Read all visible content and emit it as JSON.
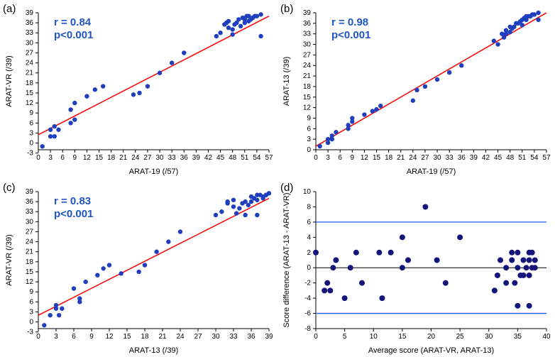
{
  "figure": {
    "background_color": "#ffffff",
    "panel_label_font_size": 15,
    "panel_label_color": "#000000"
  },
  "panels": {
    "a": {
      "label": "(a)",
      "type": "scatter",
      "xlabel": "ARAT-19 (/57)",
      "ylabel": "ARAT-VR (/39)",
      "xlim": [
        0,
        57
      ],
      "ylim": [
        -2,
        39
      ],
      "xticks": [
        0,
        3,
        6,
        9,
        12,
        15,
        18,
        21,
        24,
        27,
        30,
        33,
        36,
        39,
        42,
        45,
        48,
        51,
        54,
        57
      ],
      "yticks": [
        -3,
        0,
        3,
        6,
        9,
        12,
        15,
        18,
        21,
        24,
        27,
        30,
        33,
        36,
        39
      ],
      "stats_label": {
        "r": "r = 0.84",
        "p": "p<0.001"
      },
      "stats_color": "#1f55c3",
      "stats_fontsize": 15,
      "stats_bold": true,
      "axis_color": "#000000",
      "axis_fontsize": 10,
      "marker_color": "#1f3fbf",
      "marker_size": 3.2,
      "fit_line_color": "#ff0000",
      "fit_line_width": 1.5,
      "fit_line": {
        "x1": 0,
        "y1": 2.5,
        "x2": 57,
        "y2": 38
      },
      "points": [
        [
          1,
          -1
        ],
        [
          3,
          2
        ],
        [
          3,
          4
        ],
        [
          4,
          5
        ],
        [
          4,
          2
        ],
        [
          5,
          4
        ],
        [
          8,
          10
        ],
        [
          8,
          6
        ],
        [
          9,
          12
        ],
        [
          9,
          7
        ],
        [
          12,
          14
        ],
        [
          14,
          16
        ],
        [
          16,
          17
        ],
        [
          23.5,
          14.5
        ],
        [
          25,
          15
        ],
        [
          27,
          17
        ],
        [
          30,
          21
        ],
        [
          33,
          24
        ],
        [
          36,
          27
        ],
        [
          44,
          32
        ],
        [
          45,
          33
        ],
        [
          46,
          35.5
        ],
        [
          46.5,
          36
        ],
        [
          47,
          34.5
        ],
        [
          47,
          36.5
        ],
        [
          48,
          32.5
        ],
        [
          48,
          34
        ],
        [
          48.5,
          35.5
        ],
        [
          49,
          36
        ],
        [
          49.5,
          37
        ],
        [
          50,
          35
        ],
        [
          50.5,
          37.5
        ],
        [
          51,
          36
        ],
        [
          51,
          37
        ],
        [
          51.5,
          38
        ],
        [
          52,
          36.5
        ],
        [
          52,
          38
        ],
        [
          52.5,
          37
        ],
        [
          53,
          37.5
        ],
        [
          53.5,
          38
        ],
        [
          54,
          38
        ],
        [
          55,
          38.5
        ],
        [
          55,
          32
        ]
      ]
    },
    "b": {
      "label": "(b)",
      "type": "scatter",
      "xlabel": "ARAT-19 (/57)",
      "ylabel": "ARAT-13 (/39)",
      "xlim": [
        0,
        57
      ],
      "ylim": [
        0,
        39
      ],
      "xticks": [
        0,
        3,
        6,
        9,
        12,
        15,
        18,
        21,
        24,
        27,
        30,
        33,
        36,
        39,
        42,
        45,
        48,
        51,
        54,
        57
      ],
      "yticks": [
        0,
        3,
        6,
        9,
        12,
        15,
        18,
        21,
        24,
        27,
        30,
        33,
        36,
        39
      ],
      "stats_label": {
        "r": "r = 0.98",
        "p": "p<0.001"
      },
      "stats_color": "#1f55c3",
      "stats_fontsize": 15,
      "stats_bold": true,
      "axis_color": "#000000",
      "axis_fontsize": 10,
      "marker_color": "#1f3fbf",
      "marker_size": 3.2,
      "fit_line_color": "#ff0000",
      "fit_line_width": 1.5,
      "fit_line": {
        "x1": 0,
        "y1": 1,
        "x2": 57,
        "y2": 39
      },
      "points": [
        [
          1,
          1
        ],
        [
          3,
          2
        ],
        [
          3,
          3
        ],
        [
          4,
          3
        ],
        [
          4,
          4
        ],
        [
          5,
          5
        ],
        [
          8,
          6
        ],
        [
          8,
          7
        ],
        [
          9,
          8
        ],
        [
          9,
          9
        ],
        [
          12,
          10
        ],
        [
          14,
          11
        ],
        [
          15,
          11.5
        ],
        [
          16,
          12.5
        ],
        [
          24,
          14
        ],
        [
          25,
          17
        ],
        [
          27,
          18
        ],
        [
          30,
          20
        ],
        [
          33,
          22
        ],
        [
          36,
          24
        ],
        [
          44,
          31
        ],
        [
          45,
          30
        ],
        [
          46,
          33
        ],
        [
          46.5,
          32
        ],
        [
          47,
          34
        ],
        [
          47,
          33
        ],
        [
          48,
          33.5
        ],
        [
          48,
          35
        ],
        [
          48.5,
          34.5
        ],
        [
          49,
          35
        ],
        [
          49.5,
          36
        ],
        [
          50,
          36
        ],
        [
          50.5,
          36.5
        ],
        [
          51,
          35.5
        ],
        [
          51,
          37
        ],
        [
          51.5,
          37.5
        ],
        [
          52,
          37
        ],
        [
          52,
          38
        ],
        [
          52.5,
          38
        ],
        [
          53,
          38
        ],
        [
          53.5,
          38.5
        ],
        [
          54,
          38.5
        ],
        [
          55,
          39
        ],
        [
          55,
          37
        ]
      ]
    },
    "c": {
      "label": "(c)",
      "type": "scatter",
      "xlabel": "ARAT-13 (/39)",
      "ylabel": "ARAT-VR (/39)",
      "xlim": [
        0,
        39
      ],
      "ylim": [
        -2,
        39
      ],
      "xticks": [
        0,
        3,
        6,
        9,
        12,
        15,
        18,
        21,
        24,
        27,
        30,
        33,
        36,
        39
      ],
      "yticks": [
        -3,
        0,
        3,
        6,
        9,
        12,
        15,
        18,
        21,
        24,
        27,
        30,
        33,
        36,
        39
      ],
      "stats_label": {
        "r": "r = 0.83",
        "p": "p<0.001"
      },
      "stats_color": "#1f55c3",
      "stats_fontsize": 15,
      "stats_bold": true,
      "axis_color": "#000000",
      "axis_fontsize": 10,
      "marker_color": "#1f3fbf",
      "marker_size": 3.2,
      "fit_line_color": "#ff0000",
      "fit_line_width": 1.5,
      "fit_line": {
        "x1": 0,
        "y1": 2,
        "x2": 39,
        "y2": 37
      },
      "points": [
        [
          1,
          -1
        ],
        [
          2,
          2
        ],
        [
          3,
          4
        ],
        [
          3,
          5
        ],
        [
          3.5,
          2
        ],
        [
          4,
          4
        ],
        [
          6,
          10
        ],
        [
          7,
          7
        ],
        [
          7,
          6
        ],
        [
          8,
          12
        ],
        [
          10,
          14
        ],
        [
          11,
          16
        ],
        [
          12,
          17
        ],
        [
          14,
          14.5
        ],
        [
          17,
          15
        ],
        [
          18,
          17
        ],
        [
          20,
          21
        ],
        [
          22,
          24
        ],
        [
          24,
          27
        ],
        [
          30,
          32
        ],
        [
          31,
          33
        ],
        [
          32,
          35.5
        ],
        [
          32,
          36
        ],
        [
          33,
          34.5
        ],
        [
          33,
          36.5
        ],
        [
          33.5,
          32.5
        ],
        [
          34,
          34
        ],
        [
          34.5,
          35.5
        ],
        [
          35,
          36
        ],
        [
          35,
          32
        ],
        [
          35.5,
          35
        ],
        [
          36,
          37.5
        ],
        [
          36,
          36
        ],
        [
          36.5,
          37
        ],
        [
          37,
          38
        ],
        [
          37,
          36.5
        ],
        [
          37.5,
          38
        ],
        [
          38,
          37
        ],
        [
          38,
          37.5
        ],
        [
          38.5,
          38
        ],
        [
          38.5,
          38
        ],
        [
          39,
          38.5
        ],
        [
          37,
          32
        ]
      ]
    },
    "d": {
      "label": "(d)",
      "type": "bland-altman",
      "xlabel": "Average score (ARAT-VR, ARAT-13)",
      "ylabel": "Score difference (ARAT-13 - ARAT-VR)",
      "xlim": [
        0,
        40
      ],
      "ylim": [
        -8,
        10
      ],
      "xticks": [
        0,
        5,
        10,
        15,
        20,
        25,
        30,
        35,
        40
      ],
      "yticks": [
        -8,
        -6,
        -4,
        -2,
        0,
        2,
        4,
        6,
        8,
        10
      ],
      "axis_color": "#000000",
      "axis_fontsize": 10,
      "marker_color": "#14147a",
      "marker_size": 4,
      "mean_line_color": "#000000",
      "mean_line_width": 1,
      "limit_line_color": "#1f55ff",
      "limit_line_width": 1.3,
      "mean_y": 0,
      "upper_y": 6,
      "lower_y": -6,
      "points": [
        [
          0,
          2
        ],
        [
          1.5,
          -3
        ],
        [
          2,
          -2
        ],
        [
          2.5,
          -3
        ],
        [
          3,
          0
        ],
        [
          3.5,
          1
        ],
        [
          5,
          -4
        ],
        [
          6,
          0
        ],
        [
          7,
          2
        ],
        [
          8,
          -2
        ],
        [
          11,
          2
        ],
        [
          11.5,
          -4
        ],
        [
          13,
          2
        ],
        [
          15,
          4
        ],
        [
          15,
          0
        ],
        [
          16,
          1
        ],
        [
          19,
          8
        ],
        [
          21,
          1
        ],
        [
          22.5,
          -2
        ],
        [
          25,
          4
        ],
        [
          31,
          -3
        ],
        [
          31.5,
          -1
        ],
        [
          32,
          1
        ],
        [
          33,
          -2
        ],
        [
          33,
          0
        ],
        [
          34,
          2
        ],
        [
          34,
          1
        ],
        [
          34.5,
          -2
        ],
        [
          35,
          0
        ],
        [
          35,
          2
        ],
        [
          35.5,
          -1
        ],
        [
          36,
          1
        ],
        [
          36,
          -1
        ],
        [
          36.5,
          0
        ],
        [
          37,
          2
        ],
        [
          37,
          1
        ],
        [
          37,
          -5
        ],
        [
          37,
          -1
        ],
        [
          37.5,
          0
        ],
        [
          37.5,
          2
        ],
        [
          38,
          0
        ],
        [
          38,
          1
        ],
        [
          35,
          -5
        ]
      ]
    }
  }
}
